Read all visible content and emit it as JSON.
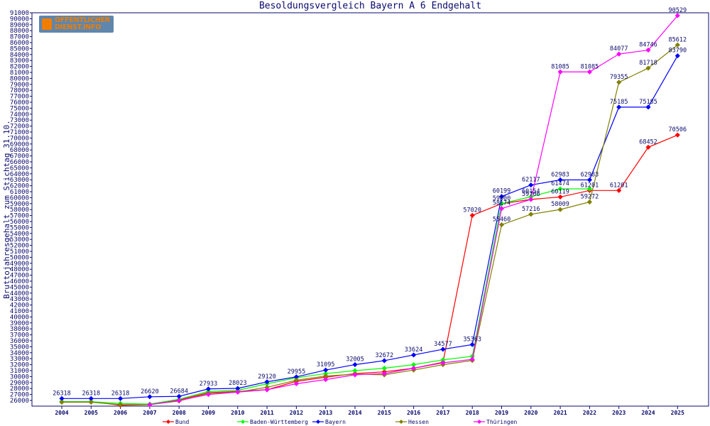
{
  "colors": {
    "background": "#ffffff",
    "axis": "#0a0a6e",
    "text": "#0a0a6e",
    "logo_bg": "#5f86ad",
    "logo_fg": "#f07d00"
  },
  "logo": {
    "line1": "OFFENTLICHER",
    "line2": "DIENST.INFO"
  },
  "chart_data": {
    "type": "line",
    "title": "Besoldungsvergleich Bayern A 6 Endgehalt",
    "xlabel": "",
    "ylabel": "Bruttojahresgehalt zum Stichtag 31.10.",
    "ylim": [
      26000,
      91000
    ],
    "ytick_step": 1000,
    "grid": false,
    "legend": "bottom",
    "categories": [
      "2004",
      "2005",
      "2006",
      "2007",
      "2008",
      "2009",
      "2010",
      "2011",
      "2012",
      "2013",
      "2014",
      "2015",
      "2016",
      "2017",
      "2018",
      "2019",
      "2020",
      "2021",
      "2022",
      "2023",
      "2024",
      "2025"
    ],
    "series": [
      {
        "name": "Bund",
        "color": "#ff0000",
        "values": [
          25800,
          25800,
          25200,
          25300,
          26100,
          27300,
          27500,
          27800,
          29200,
          29900,
          30500,
          30800,
          31400,
          32400,
          57020,
          59000,
          59706,
          60119,
          61201,
          61201,
          68452,
          70506
        ]
      },
      {
        "name": "Baden-Württemberg",
        "color": "#00ff00",
        "values": [
          25800,
          25800,
          25500,
          25400,
          26200,
          27500,
          27700,
          28800,
          29800,
          30500,
          31000,
          31400,
          32000,
          32800,
          33400,
          59000,
          60154,
          61474,
          61474,
          null,
          null,
          null
        ]
      },
      {
        "name": "Bayern",
        "color": "#0000ff",
        "values": [
          26318,
          26318,
          26318,
          26620,
          26684,
          27933,
          28023,
          29120,
          29955,
          31095,
          32005,
          32672,
          33624,
          34577,
          35363,
          60199,
          62117,
          62983,
          62983,
          75185,
          75185,
          83790
        ]
      },
      {
        "name": "Hessen",
        "color": "#808000",
        "values": [
          25700,
          25700,
          25300,
          25300,
          25900,
          27200,
          27400,
          28200,
          29400,
          30100,
          30400,
          30300,
          31100,
          32000,
          32700,
          55460,
          57216,
          58009,
          59272,
          79355,
          81718,
          85612
        ]
      },
      {
        "name": "Thüringen",
        "color": "#ff00ff",
        "values": [
          null,
          null,
          null,
          25300,
          26000,
          27000,
          27400,
          27800,
          28800,
          29500,
          30300,
          30500,
          31400,
          32300,
          32900,
          58174,
          59706,
          81085,
          81085,
          84077,
          84746,
          90529
        ]
      }
    ],
    "data_labels": [
      {
        "series": 1,
        "x": "2020",
        "text": "60154"
      },
      {
        "series": 1,
        "x": "2021",
        "text": "61474"
      },
      {
        "series": 2,
        "x": "2004",
        "text": "26318"
      },
      {
        "series": 2,
        "x": "2005",
        "text": "26318"
      },
      {
        "series": 2,
        "x": "2006",
        "text": "26318"
      },
      {
        "series": 2,
        "x": "2007",
        "text": "26620"
      },
      {
        "series": 2,
        "x": "2008",
        "text": "26684"
      },
      {
        "series": 2,
        "x": "2009",
        "text": "27933"
      },
      {
        "series": 2,
        "x": "2010",
        "text": "28023"
      },
      {
        "series": 2,
        "x": "2011",
        "text": "29120"
      },
      {
        "series": 2,
        "x": "2012",
        "text": "29955"
      },
      {
        "series": 2,
        "x": "2013",
        "text": "31095"
      },
      {
        "series": 2,
        "x": "2014",
        "text": "32005"
      },
      {
        "series": 2,
        "x": "2015",
        "text": "32672"
      },
      {
        "series": 2,
        "x": "2016",
        "text": "33624"
      },
      {
        "series": 2,
        "x": "2017",
        "text": "34577"
      },
      {
        "series": 2,
        "x": "2018",
        "text": "35363"
      },
      {
        "series": 2,
        "x": "2019",
        "text": "60199"
      },
      {
        "series": 2,
        "x": "2020",
        "text": "62117"
      },
      {
        "series": 2,
        "x": "2021",
        "text": "62983"
      },
      {
        "series": 2,
        "x": "2022",
        "text": "62983"
      },
      {
        "series": 2,
        "x": "2023",
        "text": "75185"
      },
      {
        "series": 2,
        "x": "2024",
        "text": "75185"
      },
      {
        "series": 2,
        "x": "2025",
        "text": "83790"
      },
      {
        "series": 0,
        "x": "2018",
        "text": "57020"
      },
      {
        "series": 0,
        "x": "2020",
        "text": "59706"
      },
      {
        "series": 0,
        "x": "2021",
        "text": "60119"
      },
      {
        "series": 0,
        "x": "2022",
        "text": "61201"
      },
      {
        "series": 0,
        "x": "2023",
        "text": "61201"
      },
      {
        "series": 0,
        "x": "2024",
        "text": "68452"
      },
      {
        "series": 0,
        "x": "2025",
        "text": "70506"
      },
      {
        "series": 3,
        "x": "2019",
        "text": "55460"
      },
      {
        "series": 3,
        "x": "2020",
        "text": "57216"
      },
      {
        "series": 3,
        "x": "2021",
        "text": "58009"
      },
      {
        "series": 3,
        "x": "2022",
        "text": "59272"
      },
      {
        "series": 3,
        "x": "2023",
        "text": "79355"
      },
      {
        "series": 3,
        "x": "2024",
        "text": "81718"
      },
      {
        "series": 3,
        "x": "2025",
        "text": "85612"
      },
      {
        "series": 4,
        "x": "2019",
        "text": "58174"
      },
      {
        "series": 4,
        "x": "2021",
        "text": "81085"
      },
      {
        "series": 4,
        "x": "2022",
        "text": "81085"
      },
      {
        "series": 4,
        "x": "2023",
        "text": "84077"
      },
      {
        "series": 4,
        "x": "2024",
        "text": "84746"
      },
      {
        "series": 4,
        "x": "2025",
        "text": "90529"
      },
      {
        "series": 1,
        "x": "2019",
        "text": "59000"
      }
    ]
  }
}
